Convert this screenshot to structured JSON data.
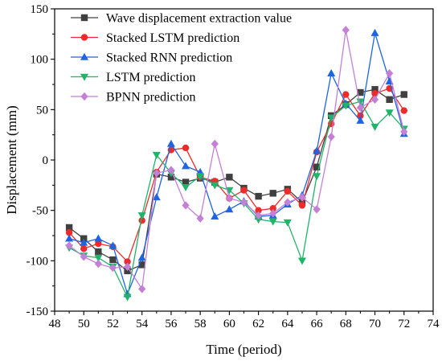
{
  "chart_data": {
    "type": "line",
    "xlabel": "Time (period)",
    "ylabel": "Displacement (mm)",
    "xlim": [
      48,
      74
    ],
    "ylim": [
      -150,
      150
    ],
    "xticks": [
      48,
      50,
      52,
      54,
      56,
      58,
      60,
      62,
      64,
      66,
      68,
      70,
      72,
      74
    ],
    "yticks": [
      -150,
      -100,
      -50,
      0,
      50,
      100,
      150
    ],
    "legend_position": "top-left",
    "grid": false,
    "x": [
      49,
      50,
      51,
      52,
      53,
      54,
      55,
      56,
      57,
      58,
      59,
      60,
      61,
      62,
      63,
      64,
      65,
      66,
      67,
      68,
      69,
      70,
      71,
      72
    ],
    "series": [
      {
        "name": "Wave displacement extraction value",
        "color": "#404040",
        "marker": "square",
        "values": [
          -67,
          -78,
          -91,
          -99,
          -110,
          -104,
          -14,
          -17,
          -22,
          -18,
          -22,
          -17,
          -28,
          -36,
          -33,
          -29,
          -42,
          -7,
          44,
          55,
          67,
          70,
          60,
          65
        ]
      },
      {
        "name": "Stacked LSTM prediction",
        "color": "#ee2b2b",
        "marker": "circle",
        "values": [
          -72,
          -88,
          -83,
          -86,
          -101,
          -60,
          -12,
          10,
          12,
          -17,
          -21,
          -38,
          -30,
          -50,
          -48,
          -31,
          -45,
          8,
          36,
          65,
          44,
          66,
          71,
          49
        ]
      },
      {
        "name": "Stacked RNN prediction",
        "color": "#1f64e0",
        "marker": "triangle-up",
        "values": [
          -78,
          -82,
          -78,
          -85,
          -133,
          -97,
          -37,
          16,
          -6,
          -12,
          -56,
          -49,
          -41,
          -56,
          -55,
          -44,
          -35,
          9,
          86,
          56,
          39,
          126,
          78,
          26
        ]
      },
      {
        "name": "LSTM prediction",
        "color": "#20b36a",
        "marker": "triangle-down",
        "values": [
          -87,
          -95,
          -97,
          -106,
          -136,
          -55,
          5,
          -13,
          -27,
          -16,
          -25,
          -30,
          -43,
          -59,
          -61,
          -62,
          -100,
          -16,
          42,
          54,
          58,
          33,
          47,
          31
        ]
      },
      {
        "name": "BPNN prediction",
        "color": "#c47fd6",
        "marker": "diamond",
        "values": [
          -85,
          -96,
          -103,
          -107,
          -106,
          -128,
          -13,
          -10,
          -45,
          -58,
          16,
          -38,
          -42,
          -55,
          -53,
          -42,
          -37,
          -49,
          23,
          129,
          52,
          60,
          86,
          28
        ]
      }
    ]
  }
}
